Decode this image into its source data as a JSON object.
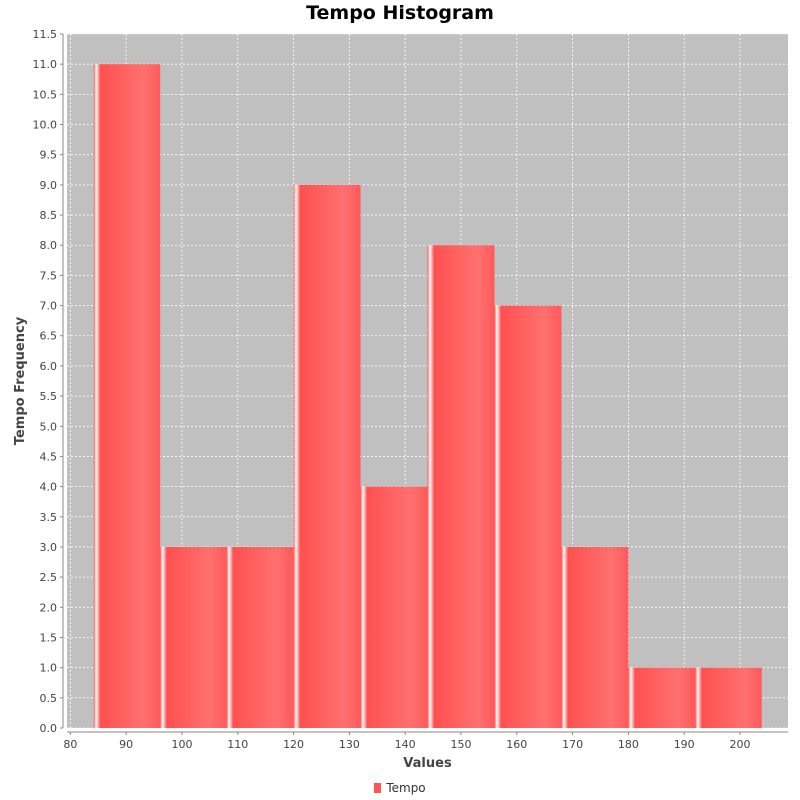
{
  "chart_data": {
    "type": "bar",
    "title": "Tempo Histogram",
    "xlabel": "Values",
    "ylabel": "Tempo Frequency",
    "bins": [
      {
        "start": 84.2,
        "end": 96.1,
        "value": 11
      },
      {
        "start": 96.1,
        "end": 108.0,
        "value": 3
      },
      {
        "start": 108.0,
        "end": 120.0,
        "value": 3
      },
      {
        "start": 120.0,
        "end": 132.0,
        "value": 9
      },
      {
        "start": 132.0,
        "end": 144.0,
        "value": 4
      },
      {
        "start": 144.0,
        "end": 156.0,
        "value": 8
      },
      {
        "start": 156.0,
        "end": 168.0,
        "value": 7
      },
      {
        "start": 168.0,
        "end": 180.0,
        "value": 3
      },
      {
        "start": 180.0,
        "end": 192.0,
        "value": 1
      },
      {
        "start": 192.0,
        "end": 203.9,
        "value": 1
      }
    ],
    "xlim": [
      79.4,
      208.6
    ],
    "ylim": [
      0,
      11.5
    ],
    "xticks": [
      80,
      90,
      100,
      110,
      120,
      130,
      140,
      150,
      160,
      170,
      180,
      190,
      200
    ],
    "yticks": [
      0.0,
      0.5,
      1.0,
      1.5,
      2.0,
      2.5,
      3.0,
      3.5,
      4.0,
      4.5,
      5.0,
      5.5,
      6.0,
      6.5,
      7.0,
      7.5,
      8.0,
      8.5,
      9.0,
      9.5,
      10.0,
      10.5,
      11.0,
      11.5
    ],
    "grid": true,
    "legend": {
      "position": "bottom",
      "entries": [
        "Tempo"
      ]
    },
    "colors": {
      "bar": "#ff5555",
      "plot_background": "#c0c0c0",
      "grid": "#ffffff"
    }
  }
}
